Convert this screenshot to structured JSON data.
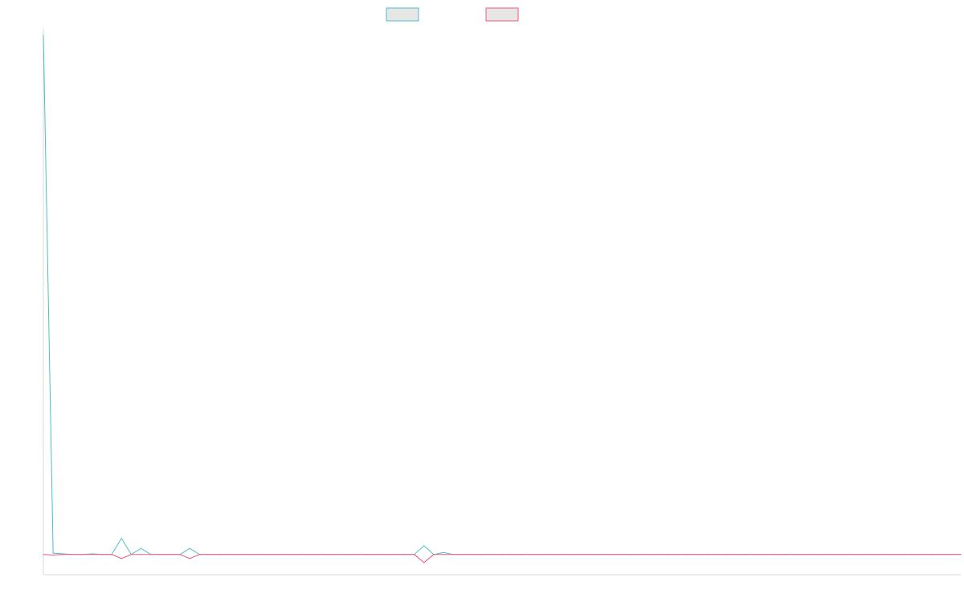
{
  "chart_data": {
    "type": "line",
    "x_count": 95,
    "ylim": [
      -30,
      780
    ],
    "legend": {
      "placement": "top-center"
    },
    "grid": false,
    "colors": {
      "series_a": "#4bbfc4",
      "series_b": "#f0587a",
      "legend_fill": "#e6e6e6"
    },
    "series": [
      {
        "name": "",
        "color": "#4bbfc4",
        "values": [
          771,
          2,
          1,
          0,
          0,
          1,
          0,
          0,
          24,
          0,
          9,
          0,
          0,
          0,
          0,
          9,
          0,
          0,
          0,
          0,
          0,
          0,
          0,
          0,
          0,
          0,
          0,
          0,
          0,
          0,
          0,
          0,
          0,
          0,
          0,
          0,
          0,
          0,
          0,
          13,
          0,
          3,
          0,
          0,
          0,
          0,
          0,
          0,
          0,
          0,
          0,
          0,
          0,
          0,
          0,
          0,
          0,
          0,
          0,
          0,
          0,
          0,
          0,
          0,
          0,
          0,
          0,
          0,
          0,
          0,
          0,
          0,
          0,
          0,
          0,
          0,
          0,
          0,
          0,
          0,
          0,
          0,
          0,
          0,
          0,
          0,
          0,
          0,
          0,
          0,
          0,
          0,
          0,
          0,
          0
        ]
      },
      {
        "name": "",
        "color": "#f0587a",
        "values": [
          0,
          -1,
          0,
          0,
          0,
          0,
          0,
          0,
          -6,
          0,
          0,
          0,
          0,
          0,
          0,
          -6,
          0,
          0,
          0,
          0,
          0,
          0,
          0,
          0,
          0,
          0,
          0,
          0,
          0,
          0,
          0,
          0,
          0,
          0,
          0,
          0,
          0,
          0,
          0,
          -12,
          0,
          0,
          0,
          0,
          0,
          0,
          0,
          0,
          0,
          0,
          0,
          0,
          0,
          0,
          0,
          0,
          0,
          0,
          0,
          0,
          0,
          0,
          0,
          0,
          0,
          0,
          0,
          0,
          0,
          0,
          0,
          0,
          0,
          0,
          0,
          0,
          0,
          0,
          0,
          0,
          0,
          0,
          0,
          0,
          0,
          0,
          0,
          0,
          0,
          0,
          0,
          0,
          0,
          0,
          0
        ]
      }
    ]
  }
}
